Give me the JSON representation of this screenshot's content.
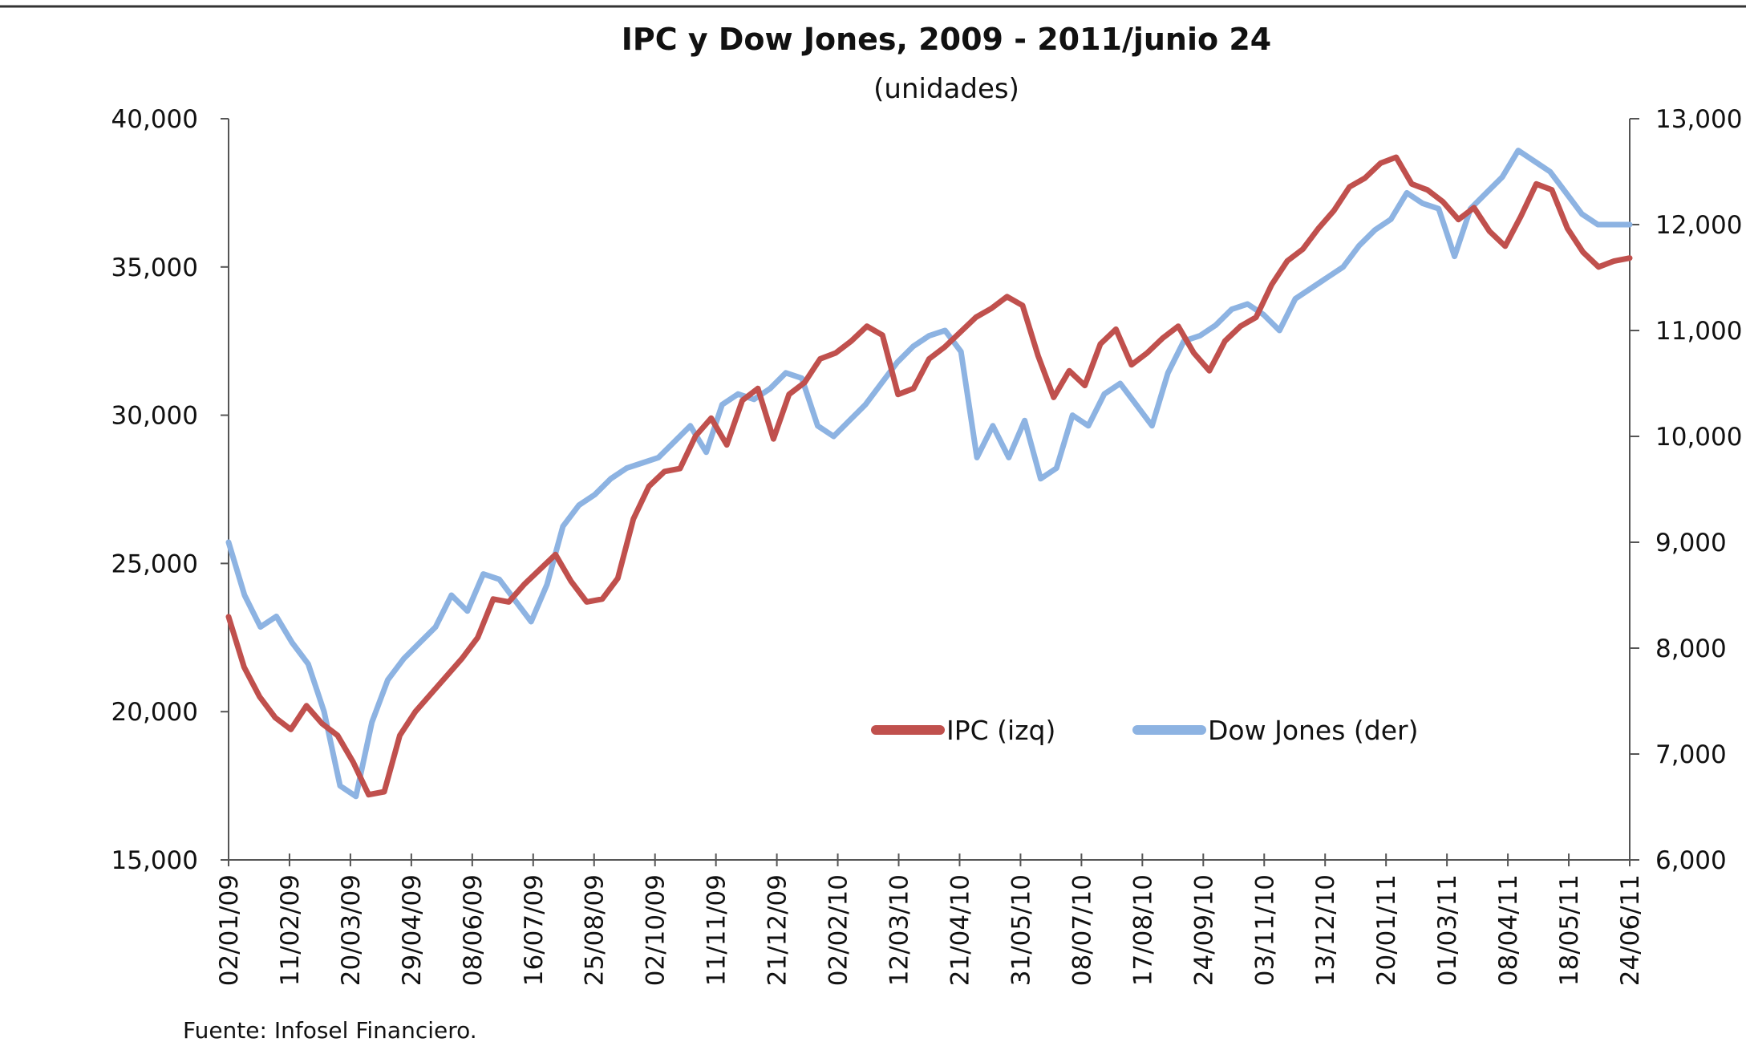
{
  "chart_data": {
    "type": "line",
    "title": "IPC y Dow Jones, 2009 - 2011/junio 24",
    "subtitle": "(unidades)",
    "source": "Fuente:  Infosel Financiero.",
    "y_left": {
      "ylim": [
        15000,
        40000
      ],
      "ticks": [
        "40,000",
        "35,000",
        "30,000",
        "25,000",
        "20,000",
        "15,000"
      ],
      "tick_values": [
        40000,
        35000,
        30000,
        25000,
        20000,
        15000
      ]
    },
    "y_right": {
      "ylim": [
        6000,
        13000
      ],
      "ticks": [
        "13,000",
        "12,000",
        "11,000",
        "10,000",
        "9,000",
        "8,000",
        "7,000",
        "6,000"
      ],
      "tick_values": [
        13000,
        12000,
        11000,
        10000,
        9000,
        8000,
        7000,
        6000
      ]
    },
    "x_ticks": [
      "02/01/09",
      "11/02/09",
      "20/03/09",
      "29/04/09",
      "08/06/09",
      "16/07/09",
      "25/08/09",
      "02/10/09",
      "11/11/09",
      "21/12/09",
      "02/02/10",
      "12/03/10",
      "21/04/10",
      "31/05/10",
      "08/07/10",
      "17/08/10",
      "24/09/10",
      "03/11/10",
      "13/12/10",
      "20/01/11",
      "01/03/11",
      "08/04/11",
      "18/05/11",
      "24/06/11"
    ],
    "grid": false,
    "legend_placement": "center-right",
    "series": [
      {
        "name": "IPC (izq)",
        "axis": "left",
        "color": "#c0504d",
        "values": [
          23200,
          21500,
          20500,
          19800,
          19400,
          20200,
          19600,
          19200,
          18300,
          17200,
          17300,
          19200,
          20000,
          20600,
          21200,
          21800,
          22500,
          23800,
          23700,
          24300,
          24800,
          25300,
          24400,
          23700,
          23800,
          24500,
          26500,
          27600,
          28100,
          28200,
          29300,
          29900,
          29000,
          30500,
          30900,
          29200,
          30700,
          31100,
          31900,
          32100,
          32500,
          33000,
          32700,
          30700,
          30900,
          31900,
          32300,
          32800,
          33300,
          33600,
          34000,
          33700,
          32000,
          30600,
          31500,
          31000,
          32400,
          32900,
          31700,
          32100,
          32600,
          33000,
          32100,
          31500,
          32500,
          33000,
          33300,
          34400,
          35200,
          35600,
          36300,
          36900,
          37700,
          38000,
          38500,
          38700,
          37800,
          37600,
          37200,
          36600,
          37000,
          36200,
          35700,
          36700,
          37800,
          37600,
          36300,
          35500,
          35000,
          35200,
          35300
        ]
      },
      {
        "name": "Dow Jones (der)",
        "axis": "right",
        "color": "#8db3e2",
        "values": [
          9000,
          8500,
          8200,
          8300,
          8050,
          7850,
          7400,
          6700,
          6600,
          7300,
          7700,
          7900,
          8050,
          8200,
          8500,
          8350,
          8700,
          8650,
          8450,
          8250,
          8600,
          9150,
          9350,
          9450,
          9600,
          9700,
          9750,
          9800,
          9950,
          10100,
          9850,
          10300,
          10400,
          10350,
          10450,
          10600,
          10550,
          10100,
          10000,
          10150,
          10300,
          10500,
          10700,
          10850,
          10950,
          11000,
          10800,
          9800,
          10100,
          9800,
          10150,
          9600,
          9700,
          10200,
          10100,
          10400,
          10500,
          10300,
          10100,
          10600,
          10900,
          10950,
          11050,
          11200,
          11250,
          11150,
          11000,
          11300,
          11400,
          11500,
          11600,
          11800,
          11950,
          12050,
          12300,
          12200,
          12150,
          11700,
          12150,
          12300,
          12450,
          12700,
          12600,
          12500,
          12300,
          12100,
          12000,
          12000,
          12000
        ]
      }
    ]
  }
}
